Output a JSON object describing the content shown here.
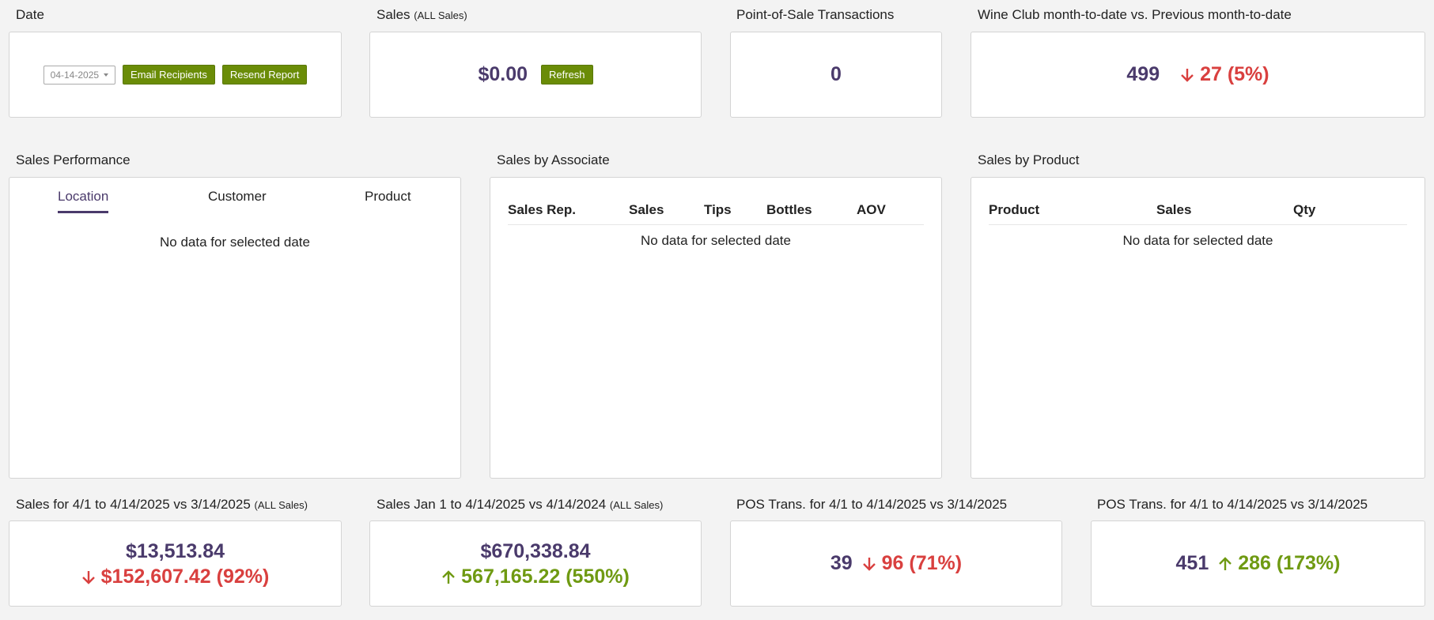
{
  "date_card": {
    "title": "Date",
    "date_value": "04-14-2025",
    "email_label": "Email Recipients",
    "resend_label": "Resend Report"
  },
  "sales_card": {
    "title": "Sales",
    "title_note": "(ALL Sales)",
    "value": "$0.00",
    "refresh_label": "Refresh"
  },
  "pos_card": {
    "title": "Point-of-Sale Transactions",
    "value": "0"
  },
  "wine_club_card": {
    "title": "Wine Club month-to-date vs. Previous month-to-date",
    "value": "499",
    "delta": "27 (5%)",
    "direction": "down"
  },
  "sales_performance": {
    "title": "Sales Performance",
    "tabs": [
      "Location",
      "Customer",
      "Product"
    ],
    "active_tab": "Location",
    "empty_text": "No data for selected date"
  },
  "sales_by_associate": {
    "title": "Sales by Associate",
    "columns": [
      "Sales Rep.",
      "Sales",
      "Tips",
      "Bottles",
      "AOV"
    ],
    "empty_text": "No data for selected date"
  },
  "sales_by_product": {
    "title": "Sales by Product",
    "columns": [
      "Product",
      "Sales",
      "Qty"
    ],
    "empty_text": "No data for selected date"
  },
  "sales_month": {
    "title": "Sales for 4/1 to 4/14/2025 vs 3/14/2025",
    "title_note": "(ALL Sales)",
    "value": "$13,513.84",
    "delta": "$152,607.42 (92%)",
    "direction": "down"
  },
  "sales_ytd": {
    "title": "Sales Jan 1 to 4/14/2025 vs 4/14/2024",
    "title_note": "(ALL Sales)",
    "value": "$670,338.84",
    "delta": "567,165.22 (550%)",
    "direction": "up"
  },
  "pos_trans_1": {
    "title": "POS Trans. for 4/1 to 4/14/2025 vs 3/14/2025",
    "value": "39",
    "delta": "96 (71%)",
    "direction": "down"
  },
  "pos_trans_2": {
    "title": "POS Trans. for 4/1 to 4/14/2025 vs 3/14/2025",
    "value": "451",
    "delta": "286 (173%)",
    "direction": "up"
  },
  "colors": {
    "accent": "#4a3a6b",
    "negative": "#d9403f",
    "positive": "#6f9a12",
    "button": "#6a8c07"
  }
}
